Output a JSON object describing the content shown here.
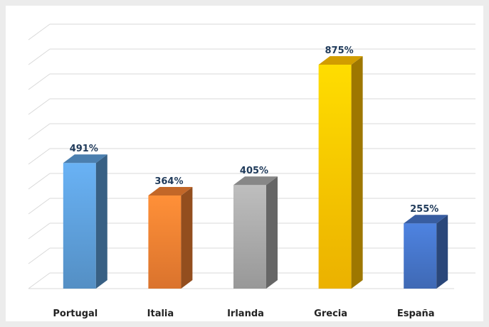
{
  "chart_data": {
    "type": "bar",
    "categories": [
      "Portugal",
      "Italia",
      "Irlanda",
      "Grecia",
      "España"
    ],
    "values": [
      491,
      364,
      405,
      875,
      255
    ],
    "value_labels": [
      "491%",
      "364%",
      "405%",
      "875%",
      "255%"
    ],
    "unit": "%",
    "ylim": [
      0,
      950
    ],
    "grid": true,
    "legend": "none",
    "bar_colors": [
      "#5b9bd5",
      "#ed7d31",
      "#a5a5a5",
      "#ffc000",
      "#4472c4"
    ]
  }
}
